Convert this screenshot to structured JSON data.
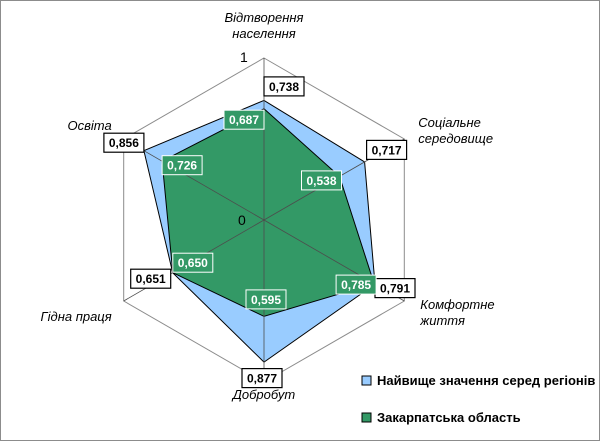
{
  "chart_data": {
    "type": "radar",
    "categories": [
      "Відтворення населення",
      "Соціальне середовище",
      "Комфортне життя",
      "Добробут",
      "Гідна праця",
      "Освіта"
    ],
    "category_lines": [
      [
        "Відтворення",
        "населення"
      ],
      [
        "Соціальне",
        "середовище"
      ],
      [
        "Комфортне",
        "життя"
      ],
      [
        "Добробут"
      ],
      [
        "Гідна праця"
      ],
      [
        "Освіта"
      ]
    ],
    "series": [
      {
        "name": "Найвище значення серед регіонів",
        "values": [
          0.738,
          0.717,
          0.791,
          0.877,
          0.651,
          0.856
        ],
        "labels": [
          "0,738",
          "0,717",
          "0,791",
          "0,877",
          "0,651",
          "0,856"
        ],
        "color": "#99ccff"
      },
      {
        "name": "Закарпатська область",
        "values": [
          0.687,
          0.538,
          0.785,
          0.595,
          0.65,
          0.726
        ],
        "labels": [
          "0,687",
          "0,538",
          "0,785",
          "0,595",
          "0,650",
          "0,726"
        ],
        "color": "#339966"
      }
    ],
    "range": [
      0,
      1
    ],
    "tick_labels": [
      "0",
      "1"
    ],
    "grid": true,
    "legend_position": "bottom-right"
  }
}
